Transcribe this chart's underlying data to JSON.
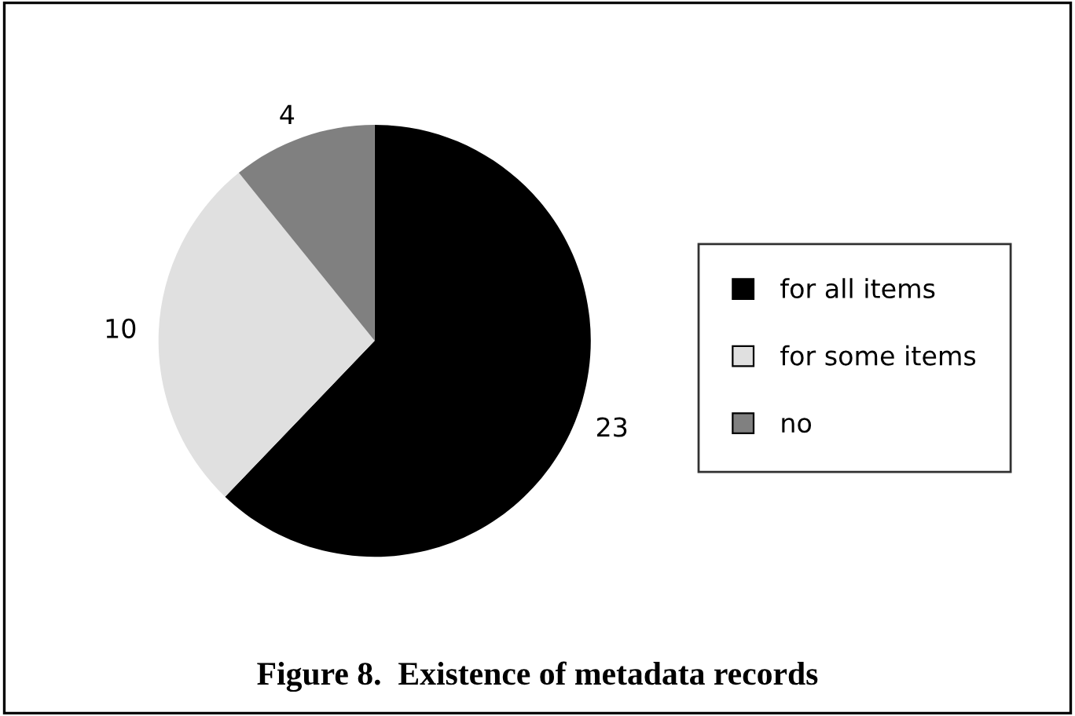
{
  "chart_data": {
    "type": "pie",
    "title": "Figure 8.  Existence of metadata records",
    "categories": [
      "for all items",
      "for some items",
      "no"
    ],
    "values": [
      23,
      10,
      4
    ],
    "colors": [
      "#000000",
      "#e0e0e0",
      "#808080"
    ],
    "data_labels": true,
    "legend": "right"
  }
}
